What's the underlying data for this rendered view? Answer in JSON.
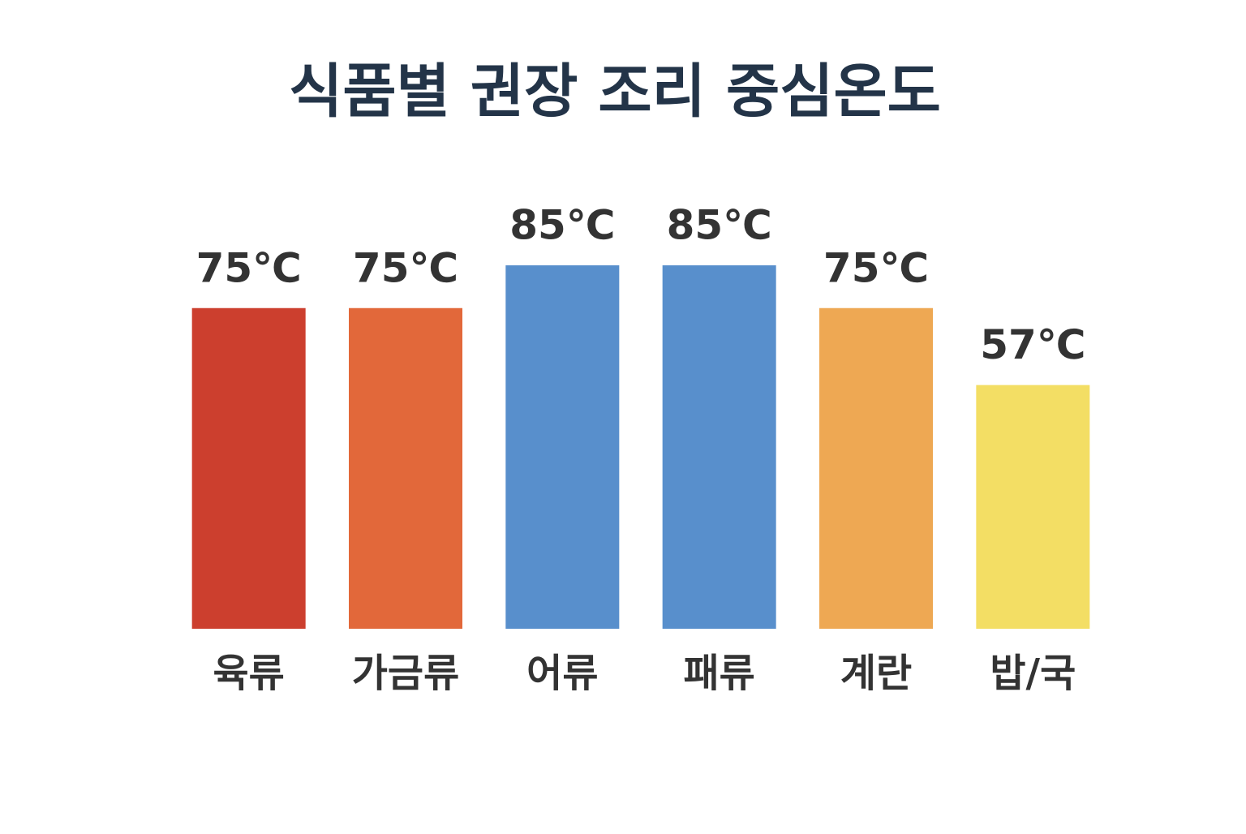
{
  "chart_data": {
    "type": "bar",
    "title": "식품별 권장 조리 중심온도",
    "categories": [
      "육류",
      "가금류",
      "어류",
      "패류",
      "계란",
      "밥/국"
    ],
    "values": [
      75,
      75,
      85,
      85,
      75,
      57
    ],
    "value_labels": [
      "75℃",
      "75℃",
      "85℃",
      "85℃",
      "75℃",
      "57℃"
    ],
    "colors": [
      "#cc3f2e",
      "#e2683a",
      "#588fcc",
      "#588fcc",
      "#eea853",
      "#f3de64"
    ]
  }
}
